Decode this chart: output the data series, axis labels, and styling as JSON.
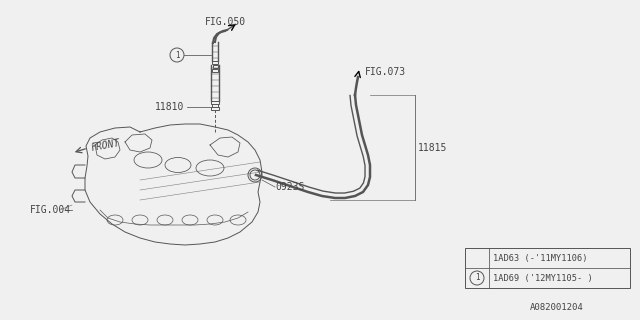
{
  "bg_color": "#f0f0f0",
  "line_color": "#555555",
  "text_color": "#444444",
  "fig_width": 6.4,
  "fig_height": 3.2,
  "labels": {
    "fig050": "FIG.050",
    "fig073": "FIG.073",
    "fig004": "FIG.004",
    "front": "FRONT",
    "part11810": "11810",
    "part11815": "11815",
    "part09235": "0923S",
    "legend1": "1AD63 (-'11MY1106)",
    "legend2": "1AD69 ('12MY1105- )",
    "doc_num": "A082001204"
  }
}
